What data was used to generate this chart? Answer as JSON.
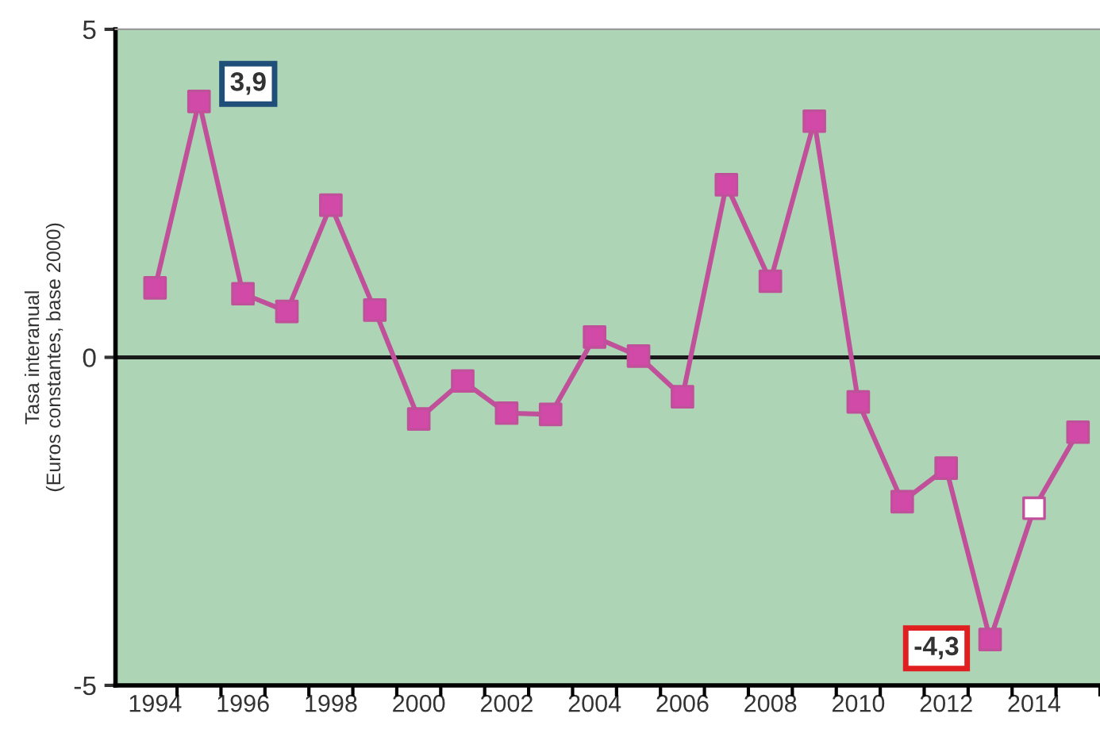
{
  "chart_data": {
    "type": "line",
    "ylabel": "Tasa interanual\n(Euros constantes, base 2000)",
    "categories": [
      "1994",
      null,
      "1996",
      null,
      "1998",
      null,
      "2000",
      null,
      "2002",
      null,
      "2004",
      null,
      "2006",
      null,
      "2008",
      null,
      "2010",
      null,
      "2012",
      null,
      "2014",
      null
    ],
    "series": [
      {
        "color": "#c1509b",
        "colors": [
          "#d14aa8",
          "#d14aa8",
          "#d14aa8",
          "#d14aa8",
          "#d14aa8",
          "#d14aa8",
          "#d14aa8",
          "#d14aa8",
          "#d14aa8",
          "#d14aa8",
          "#d14aa8",
          "#d14aa8",
          "#d14aa8",
          "#d14aa8",
          "#d14aa8",
          "#d14aa8",
          "#d14aa8",
          "#d14aa8",
          "#d14aa8",
          "#d14aa8",
          "#ffffff",
          "#d14aa8"
        ],
        "values": [
          1.06,
          3.9,
          0.97,
          0.7,
          2.32,
          0.72,
          -0.94,
          -0.36,
          -0.85,
          -0.87,
          0.31,
          0.02,
          -0.6,
          2.63,
          1.16,
          3.6,
          -0.68,
          -2.2,
          -1.69,
          -4.3,
          -2.3,
          -1.14
        ]
      }
    ],
    "ylim": [
      -5,
      5
    ],
    "yticks": [
      -5,
      0,
      5
    ],
    "ref_lines": [
      {
        "axis": "y",
        "value": 0,
        "color": "#1a1a1a"
      }
    ],
    "annotations": [
      "3,9",
      "-4,3"
    ],
    "marker": "square",
    "grid": false,
    "legend": false
  }
}
